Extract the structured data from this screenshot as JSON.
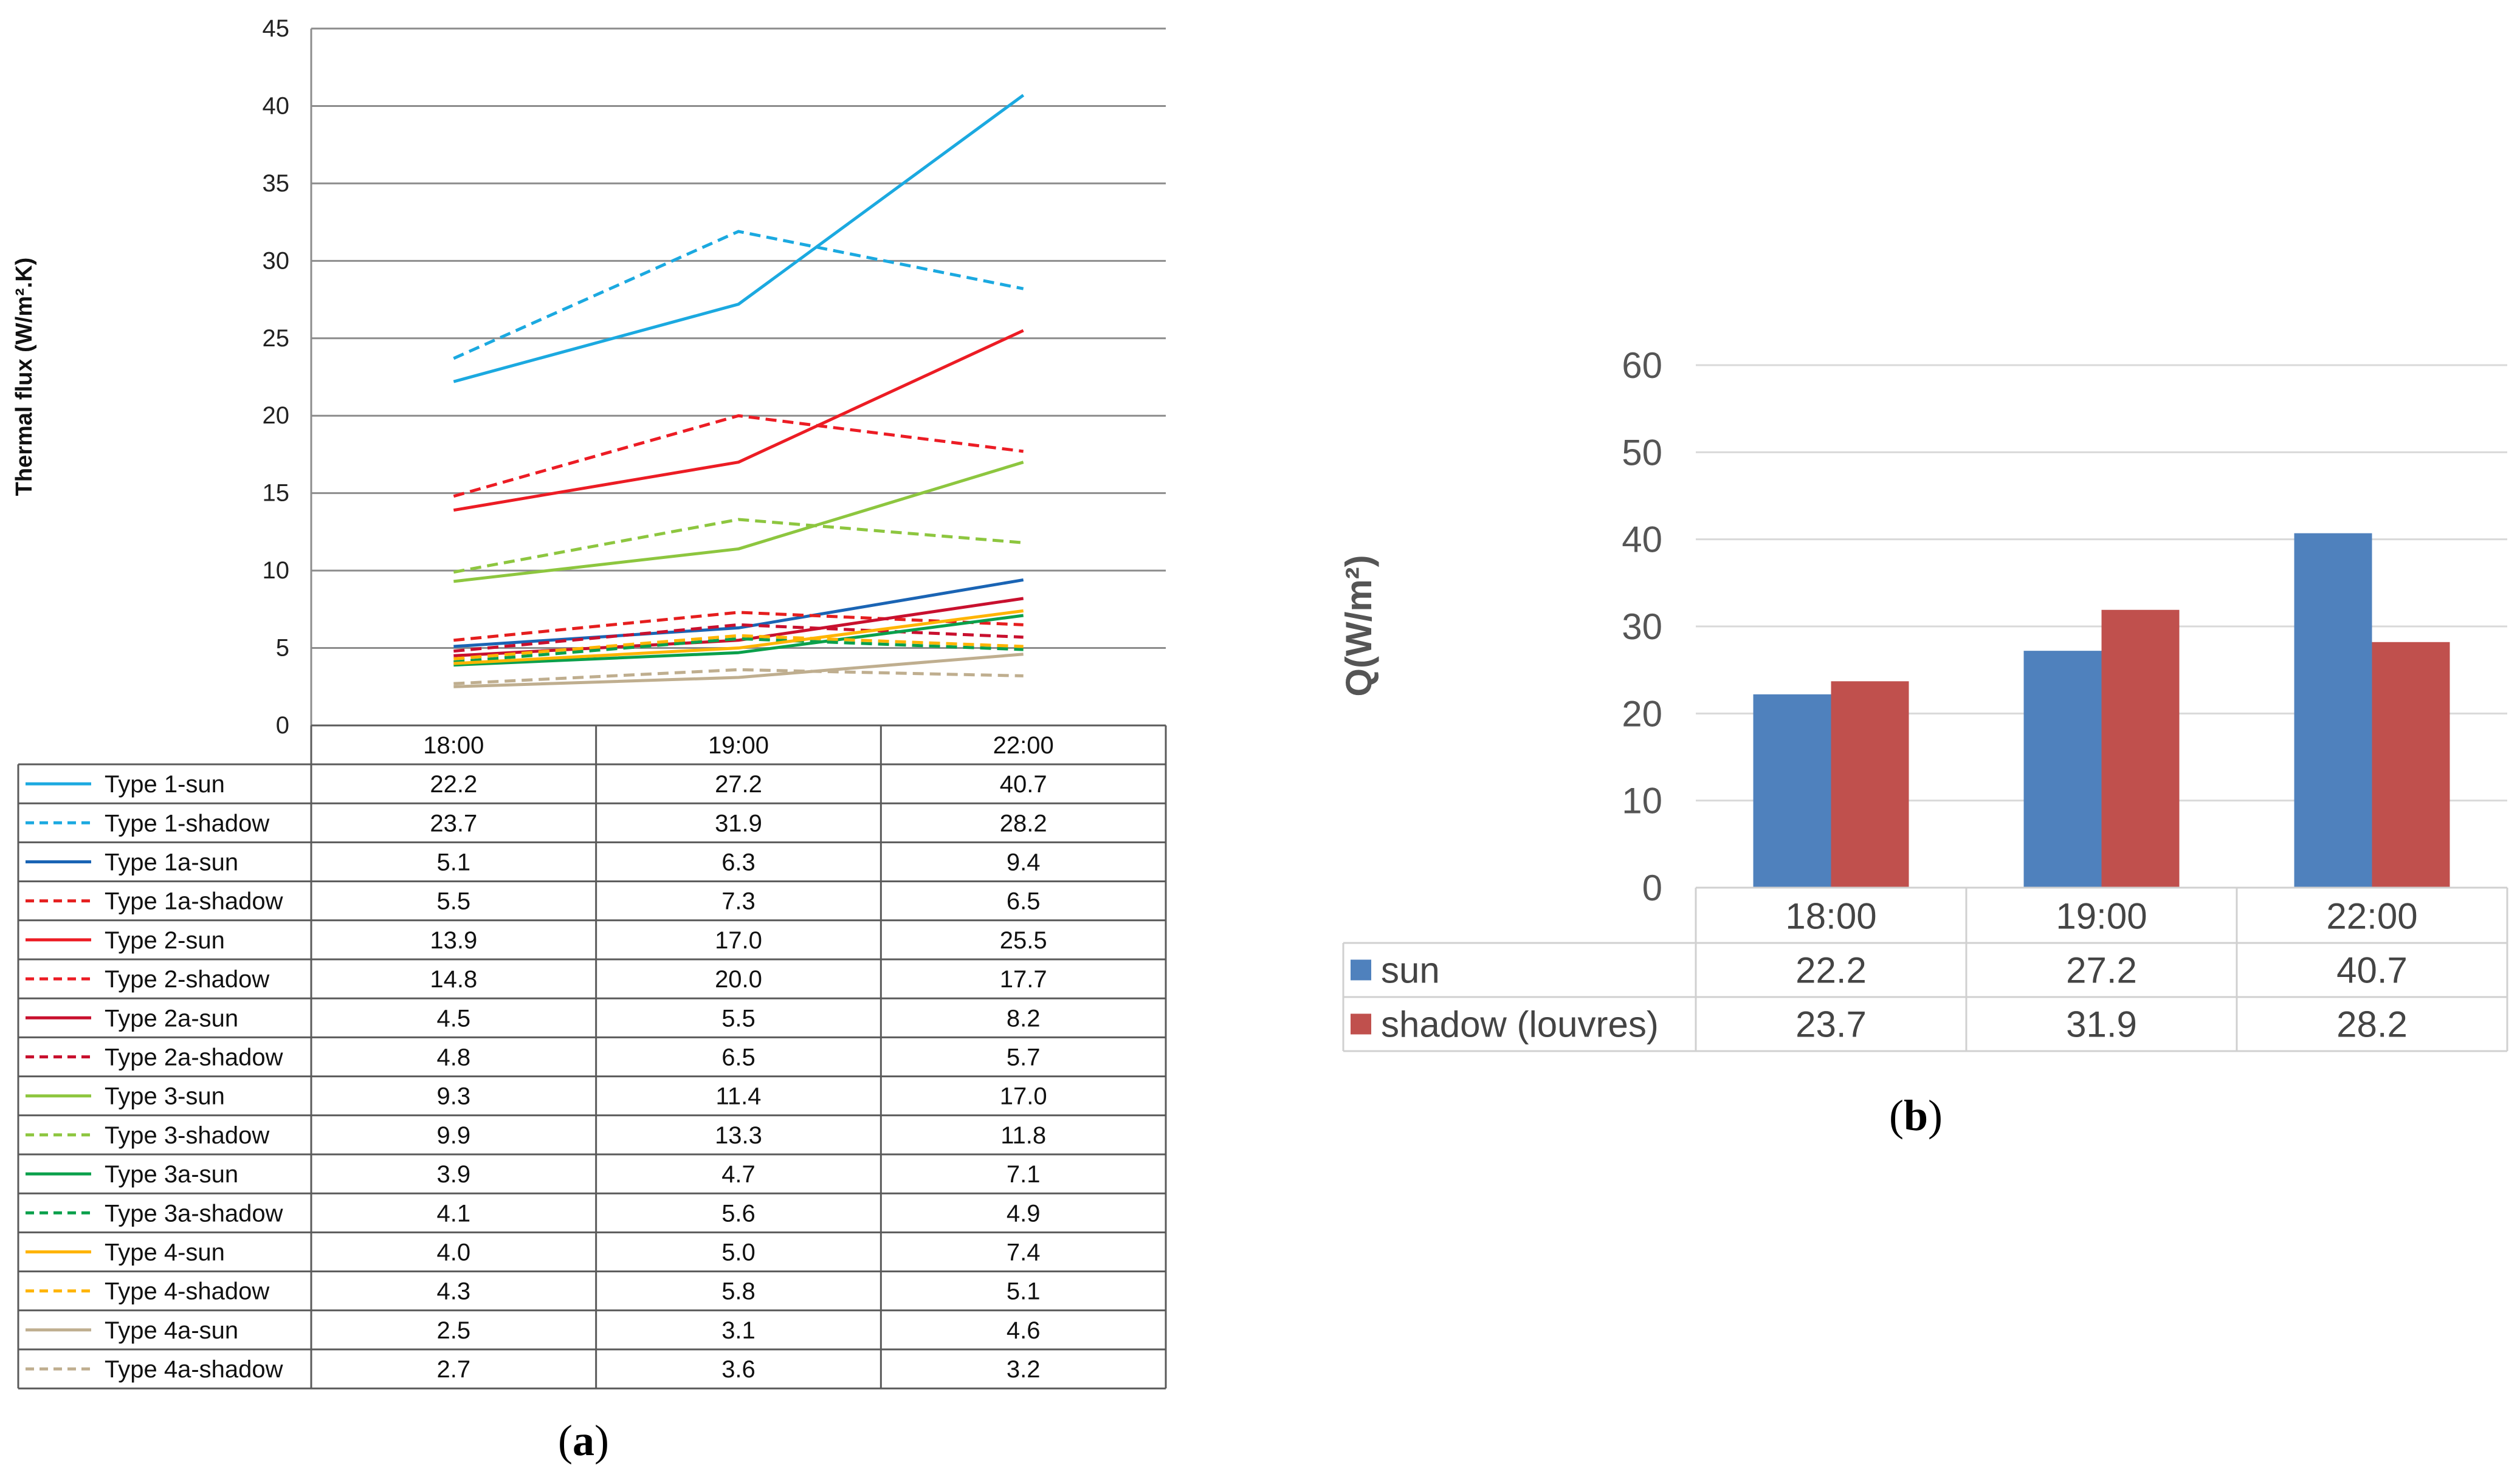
{
  "chart_data": [
    {
      "type": "line",
      "caption": "a",
      "ylabel": "Thermal flux (W/m².K)",
      "ylim": [
        0,
        45
      ],
      "yticks": [
        0,
        5,
        10,
        15,
        20,
        25,
        30,
        35,
        40,
        45
      ],
      "categories": [
        "18:00",
        "19:00",
        "22:00"
      ],
      "grid": true,
      "data_table": true,
      "series": [
        {
          "name": "Type 1-sun",
          "color": "#1ba9e0",
          "dashed": false,
          "values": [
            22.2,
            27.2,
            40.7
          ],
          "labels": [
            "22.2",
            "27.2",
            "40.7"
          ]
        },
        {
          "name": "Type 1-shadow",
          "color": "#1ba9e0",
          "dashed": true,
          "values": [
            23.7,
            31.9,
            28.2
          ],
          "labels": [
            "23.7",
            "31.9",
            "28.2"
          ]
        },
        {
          "name": "Type 1a-sun",
          "color": "#1a64b4",
          "dashed": false,
          "values": [
            5.1,
            6.3,
            9.4
          ],
          "labels": [
            "5.1",
            "6.3",
            "9.4"
          ]
        },
        {
          "name": "Type 1a-shadow",
          "color": "#e51e1e",
          "dashed": true,
          "values": [
            5.5,
            7.3,
            6.5
          ],
          "labels": [
            "5.5",
            "7.3",
            "6.5"
          ]
        },
        {
          "name": "Type 2-sun",
          "color": "#ec1c24",
          "dashed": false,
          "values": [
            13.9,
            17.0,
            25.5
          ],
          "labels": [
            "13.9",
            "17.0",
            "25.5"
          ]
        },
        {
          "name": "Type 2-shadow",
          "color": "#ec1c24",
          "dashed": true,
          "values": [
            14.8,
            20.0,
            17.7
          ],
          "labels": [
            "14.8",
            "20.0",
            "17.7"
          ]
        },
        {
          "name": "Type 2a-sun",
          "color": "#c8102e",
          "dashed": false,
          "values": [
            4.5,
            5.5,
            8.2
          ],
          "labels": [
            "4.5",
            "5.5",
            "8.2"
          ]
        },
        {
          "name": "Type 2a-shadow",
          "color": "#c8102e",
          "dashed": true,
          "values": [
            4.8,
            6.5,
            5.7
          ],
          "labels": [
            "4.8",
            "6.5",
            "5.7"
          ]
        },
        {
          "name": "Type 3-sun",
          "color": "#8dc63f",
          "dashed": false,
          "values": [
            9.3,
            11.4,
            17.0
          ],
          "labels": [
            "9.3",
            "11.4",
            "17.0"
          ]
        },
        {
          "name": "Type 3-shadow",
          "color": "#8dc63f",
          "dashed": true,
          "values": [
            9.9,
            13.3,
            11.8
          ],
          "labels": [
            "9.9",
            "13.3",
            "11.8"
          ]
        },
        {
          "name": "Type 3a-sun",
          "color": "#0aa04b",
          "dashed": false,
          "values": [
            3.9,
            4.7,
            7.1
          ],
          "labels": [
            "3.9",
            "4.7",
            "7.1"
          ]
        },
        {
          "name": "Type 3a-shadow",
          "color": "#0aa04b",
          "dashed": true,
          "values": [
            4.1,
            5.6,
            4.9
          ],
          "labels": [
            "4.1",
            "5.6",
            "4.9"
          ]
        },
        {
          "name": "Type 4-sun",
          "color": "#ffb400",
          "dashed": false,
          "values": [
            4.0,
            5.0,
            7.4
          ],
          "labels": [
            "4.0",
            "5.0",
            "7.4"
          ]
        },
        {
          "name": "Type 4-shadow",
          "color": "#ffb400",
          "dashed": true,
          "values": [
            4.3,
            5.8,
            5.1
          ],
          "labels": [
            "4.3",
            "5.8",
            "5.1"
          ]
        },
        {
          "name": "Type 4a-sun",
          "color": "#bfae8f",
          "dashed": false,
          "values": [
            2.5,
            3.1,
            4.6
          ],
          "labels": [
            "2.5",
            "3.1",
            "4.6"
          ]
        },
        {
          "name": "Type 4a-shadow",
          "color": "#bfae8f",
          "dashed": true,
          "values": [
            2.7,
            3.6,
            3.2
          ],
          "labels": [
            "2.7",
            "3.6",
            "3.2"
          ]
        }
      ]
    },
    {
      "type": "bar",
      "caption": "b",
      "ylabel": "Q(W/m²)",
      "ylim": [
        0,
        60
      ],
      "yticks": [
        0,
        10,
        20,
        30,
        40,
        50,
        60
      ],
      "categories": [
        "18:00",
        "19:00",
        "22:00"
      ],
      "grid": true,
      "data_table": true,
      "series": [
        {
          "name": "sun",
          "color": "#4f81bd",
          "values": [
            22.2,
            27.2,
            40.7
          ],
          "labels": [
            "22.2",
            "27.2",
            "40.7"
          ]
        },
        {
          "name": "shadow (louvres)",
          "color": "#c0504d",
          "values": [
            23.7,
            31.9,
            28.2
          ],
          "labels": [
            "23.7",
            "31.9",
            "28.2"
          ]
        }
      ]
    }
  ]
}
